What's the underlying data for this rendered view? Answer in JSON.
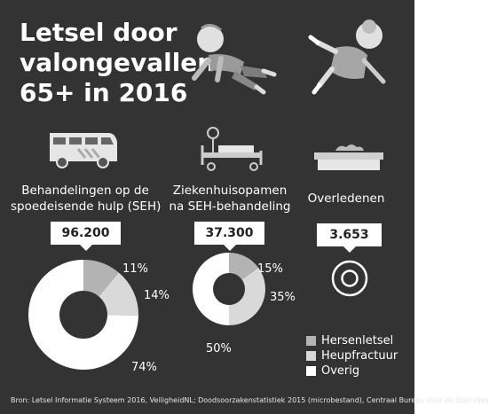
{
  "title": {
    "line1": "Letsel door",
    "line2": "valongevallen",
    "line3": "65+ in 2016"
  },
  "colors": {
    "background": "#333333",
    "hersenletsel": "#b3b3b3",
    "heupfractuur": "#d9d9d9",
    "overig": "#ffffff"
  },
  "icons": [
    "falling-man-icon",
    "falling-woman-icon",
    "ambulance-icon",
    "hospital-bed-icon",
    "coffin-icon"
  ],
  "chart_data": {
    "type": "pie",
    "legend": [
      "Hersenletsel",
      "Heupfractuur",
      "Overig"
    ],
    "legend_placement": "bottom-right",
    "charts": [
      {
        "label_line1": "Behandelingen op de",
        "label_line2": "spoedeisende hulp (SEH)",
        "total": "96.200",
        "values": [
          11,
          14,
          74
        ],
        "value_labels": [
          "11%",
          "14%",
          "74%"
        ]
      },
      {
        "label_line1": "Ziekenhuisopamen",
        "label_line2": "na SEH-behandeling",
        "total": "37.300",
        "values": [
          15,
          35,
          50
        ],
        "value_labels": [
          "15%",
          "35%",
          "50%"
        ]
      },
      {
        "label_line1": "Overledenen",
        "label_line2": "",
        "total": "3.653",
        "values": [],
        "value_labels": []
      }
    ]
  },
  "source": "Bron: Letsel Informatie Systeem 2016, VeiligheidNL; Doodsoorzakenstatistiek 2015 (microbestand), Centraal Bureau voor de Statistiek"
}
